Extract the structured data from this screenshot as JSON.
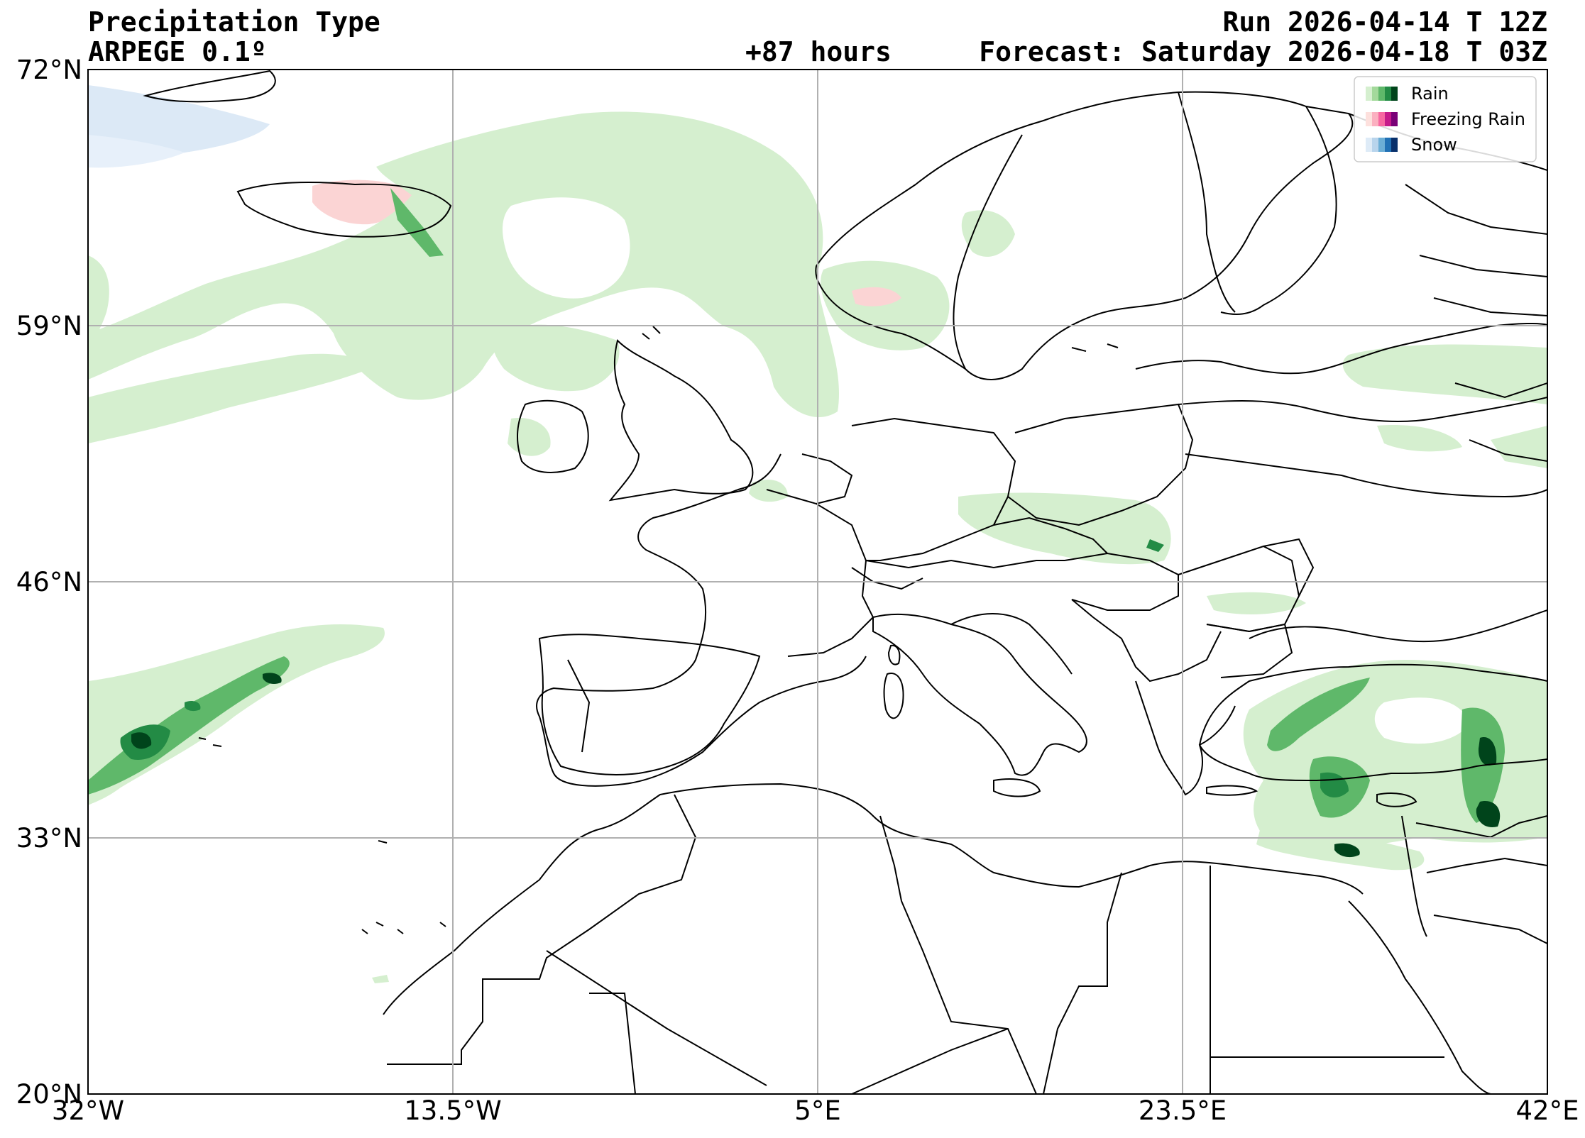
{
  "header": {
    "title": "Precipitation Type",
    "model": "ARPEGE 0.1º",
    "lead": "+87 hours",
    "run": "Run 2026-04-14 T 12Z",
    "forecast": "Forecast: Saturday 2026-04-18 T 03Z"
  },
  "map": {
    "extent": {
      "lon": [
        -32,
        42
      ],
      "lat": [
        20,
        72
      ]
    },
    "lat_ticks": [
      {
        "value": 72,
        "label": "72°N"
      },
      {
        "value": 59,
        "label": "59°N"
      },
      {
        "value": 46,
        "label": "46°N"
      },
      {
        "value": 33,
        "label": "33°N"
      },
      {
        "value": 20,
        "label": "20°N"
      }
    ],
    "lon_ticks": [
      {
        "value": -32,
        "label": "32°W"
      },
      {
        "value": -13.5,
        "label": "13.5°W"
      },
      {
        "value": 5,
        "label": "5°E"
      },
      {
        "value": 23.5,
        "label": "23.5°E"
      },
      {
        "value": 42,
        "label": "42°E"
      }
    ],
    "grid": true
  },
  "legend": {
    "placement": "top-right",
    "items": [
      {
        "label": "Rain",
        "colors": [
          "#d5efcf",
          "#a3d99b",
          "#5fb86a",
          "#238b45",
          "#00441b"
        ]
      },
      {
        "label": "Freezing Rain",
        "colors": [
          "#fde0dd",
          "#fbb0c0",
          "#f768a1",
          "#c51b8a",
          "#7a0177"
        ]
      },
      {
        "label": "Snow",
        "colors": [
          "#deebf7",
          "#b8d4ec",
          "#6baed6",
          "#2171b5",
          "#08306b"
        ]
      }
    ]
  },
  "colors": {
    "rain_light": "#d5efcf",
    "rain_mid": "#5fb86a",
    "rain_dark": "#00441b",
    "freezing_light": "#fbd4d4",
    "snow_light": "#dce9f6"
  }
}
